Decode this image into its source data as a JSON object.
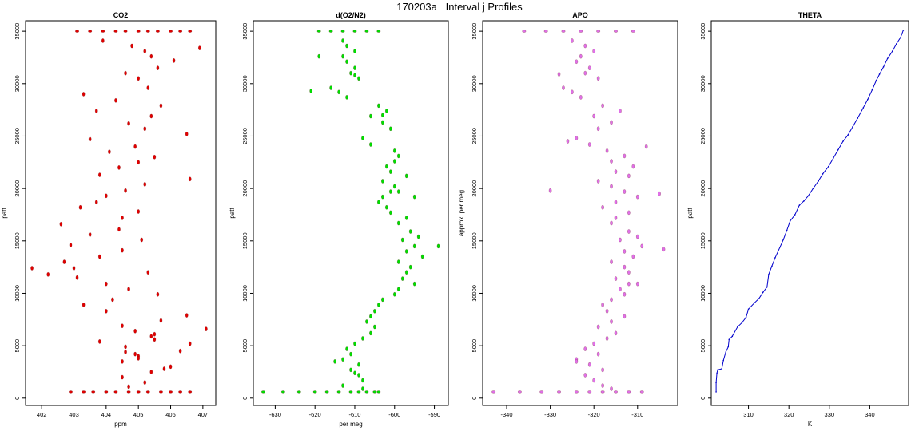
{
  "figure": {
    "title": "170203a   Interval j Profiles"
  },
  "chart_data": [
    {
      "type": "scatter",
      "title": "CO2",
      "xlabel": "ppm",
      "ylabel": "patt",
      "xlim": [
        401.5,
        407.4
      ],
      "ylim": [
        -700,
        36000
      ],
      "xticks": [
        402,
        403,
        404,
        405,
        406,
        407
      ],
      "yticks": [
        0,
        5000,
        10000,
        15000,
        20000,
        25000,
        30000,
        35000
      ],
      "color": "#e00000",
      "grid": false,
      "series": [
        {
          "x": [
            403.9,
            404.8,
            405.2,
            405.4,
            406.1,
            405.6,
            404.6,
            405.0,
            405.3,
            403.3,
            404.3,
            405.7,
            403.7,
            405.4,
            404.7,
            405.2,
            406.5,
            403.5,
            404.9,
            404.1,
            405.5,
            405.0,
            404.4,
            403.8,
            406.6,
            405.2,
            404.6,
            404.0,
            403.7,
            403.2,
            405.0,
            404.5,
            402.6,
            404.4,
            403.5,
            405.1,
            402.9,
            404.5,
            403.8,
            402.7,
            403.0,
            405.3,
            403.1,
            404.0,
            404.7,
            405.6,
            404.2,
            403.3,
            404.0,
            406.5,
            405.7,
            404.5,
            404.9,
            405.4,
            403.8,
            404.6,
            406.3,
            405.0,
            404.5,
            406.0,
            405.4,
            404.5,
            405.2,
            404.7,
            405.8,
            405.0,
            404.6,
            405.5,
            405.5,
            404.9,
            406.6,
            407.1,
            402.2,
            401.7,
            406.9
          ],
          "y": [
            34100,
            33600,
            33100,
            32600,
            32200,
            31500,
            31000,
            30500,
            29600,
            29000,
            28400,
            27900,
            27400,
            26900,
            26200,
            25700,
            25200,
            24700,
            24000,
            23500,
            23000,
            22500,
            22000,
            21300,
            20900,
            20400,
            19800,
            19300,
            18700,
            18200,
            17800,
            17200,
            16600,
            16100,
            15600,
            15100,
            14600,
            14100,
            13500,
            13000,
            12400,
            12000,
            11500,
            10900,
            10400,
            9900,
            9400,
            8900,
            8300,
            7900,
            7400,
            6900,
            6400,
            5900,
            5400,
            4900,
            4500,
            4000,
            3500,
            3000,
            2500,
            2000,
            1500,
            1100,
            2800,
            3800,
            4400,
            6100,
            5600,
            4200,
            5200,
            6600,
            11800,
            12400,
            33400
          ],
          "baseline_x": [
            402.9,
            403.3,
            403.6,
            404.0,
            404.3,
            404.7,
            405.0,
            405.3,
            405.7,
            406.0,
            406.3,
            406.6
          ],
          "top_x": [
            403.1,
            403.5,
            403.9,
            404.3,
            404.6,
            405.0,
            405.3,
            405.6,
            406.0,
            406.3,
            406.6
          ]
        }
      ]
    },
    {
      "type": "scatter",
      "title": "d(O2/N2)",
      "xlabel": "per meg",
      "ylabel": "patt",
      "xlim": [
        -635.5,
        -586.5
      ],
      "ylim": [
        -700,
        36000
      ],
      "xticks": [
        -630,
        -620,
        -610,
        -600,
        -590
      ],
      "yticks": [
        0,
        5000,
        10000,
        15000,
        20000,
        25000,
        30000,
        35000
      ],
      "color": "#00dd00",
      "grid": false,
      "series": [
        {
          "x": [
            -613,
            -612,
            -610,
            -613,
            -612,
            -610,
            -611,
            -609,
            -616,
            -614,
            -612,
            -604,
            -602,
            -606,
            -603,
            -601,
            -608,
            -606,
            -600,
            -599,
            -600,
            -602,
            -601,
            -597,
            -603,
            -600,
            -599,
            -603,
            -604,
            -602,
            -601,
            -597,
            -599,
            -596,
            -594,
            -598,
            -595,
            -597,
            -593,
            -599,
            -596,
            -597,
            -598,
            -595,
            -599,
            -600,
            -603,
            -604,
            -605,
            -606,
            -607,
            -605,
            -606,
            -608,
            -610,
            -612,
            -611,
            -613,
            -609,
            -611,
            -609,
            -608,
            -613,
            -610,
            -608,
            -615,
            -619,
            -621,
            -595,
            -601,
            -603,
            -610,
            -589
          ],
          "y": [
            34100,
            33600,
            33100,
            32600,
            32100,
            31500,
            31000,
            30500,
            29600,
            29200,
            28700,
            27900,
            27400,
            26900,
            26300,
            25700,
            24800,
            24200,
            23600,
            23100,
            22600,
            22100,
            21600,
            21200,
            20700,
            20200,
            19700,
            19200,
            18700,
            18200,
            17700,
            17200,
            16700,
            15900,
            15400,
            15100,
            14500,
            14000,
            13500,
            13000,
            12500,
            12000,
            11400,
            10900,
            10400,
            9900,
            9400,
            8900,
            8300,
            7800,
            7300,
            6800,
            6200,
            5700,
            5200,
            4700,
            4200,
            3700,
            3200,
            2700,
            2200,
            1700,
            1200,
            2400,
            900,
            3500,
            32600,
            29300,
            19200,
            19700,
            27000,
            30800,
            14500
          ],
          "baseline_x": [
            -633,
            -628,
            -624,
            -620,
            -617,
            -614,
            -611,
            -609,
            -607,
            -605,
            -604
          ],
          "top_x": [
            -619,
            -616,
            -613,
            -610,
            -607,
            -604
          ]
        }
      ]
    },
    {
      "type": "scatter",
      "title": "APO",
      "xlabel": "",
      "ylabel": "approx. per meg",
      "xlim": [
        -345.5,
        -300.8
      ],
      "ylim": [
        -700,
        36000
      ],
      "xticks": [
        -340,
        -330,
        -320,
        -310
      ],
      "yticks": [
        0,
        5000,
        10000,
        15000,
        20000,
        25000,
        30000,
        35000
      ],
      "color": "#e070e8",
      "grid": false,
      "series": [
        {
          "x": [
            -325,
            -322,
            -320,
            -323,
            -324,
            -321,
            -322,
            -319,
            -327,
            -325,
            -323,
            -318,
            -314,
            -320,
            -316,
            -319,
            -324,
            -321,
            -317,
            -313,
            -316,
            -311,
            -315,
            -312,
            -319,
            -316,
            -313,
            -310,
            -315,
            -318,
            -312,
            -315,
            -316,
            -312,
            -310,
            -314,
            -309,
            -313,
            -311,
            -316,
            -313,
            -312,
            -315,
            -310,
            -314,
            -313,
            -316,
            -318,
            -317,
            -313,
            -316,
            -319,
            -315,
            -317,
            -320,
            -322,
            -319,
            -324,
            -321,
            -318,
            -322,
            -320,
            -318,
            -316,
            -324,
            -312,
            -305,
            -304,
            -328,
            -326,
            -330,
            -308
          ],
          "y": [
            34100,
            33600,
            33100,
            32600,
            32100,
            31500,
            31000,
            30500,
            29600,
            29200,
            28700,
            27900,
            27400,
            26900,
            26300,
            25700,
            24800,
            24200,
            23600,
            23100,
            22600,
            22100,
            21600,
            21200,
            20700,
            20200,
            19700,
            19200,
            18700,
            18200,
            17700,
            17200,
            16700,
            15900,
            15400,
            15100,
            14500,
            14000,
            13500,
            13000,
            12500,
            12000,
            11400,
            10900,
            10400,
            9900,
            9400,
            8900,
            8300,
            7800,
            7300,
            6800,
            6200,
            5700,
            5200,
            4700,
            4200,
            3700,
            3200,
            2700,
            2200,
            1700,
            1200,
            900,
            3500,
            10900,
            19500,
            14200,
            30900,
            24500,
            19800,
            24000
          ],
          "baseline_x": [
            -343,
            -337,
            -332,
            -328,
            -324,
            -321,
            -318,
            -315,
            -312,
            -309
          ],
          "top_x": [
            -336,
            -331,
            -327,
            -323,
            -319,
            -315,
            -311
          ]
        }
      ]
    },
    {
      "type": "line",
      "title": "THETA",
      "xlabel": "K",
      "ylabel": "patt",
      "xlim": [
        300.8,
        349.6
      ],
      "ylim": [
        -700,
        36000
      ],
      "xticks": [
        310,
        320,
        330,
        340
      ],
      "yticks": [
        0,
        5000,
        10000,
        15000,
        20000,
        25000,
        30000,
        35000
      ],
      "color": "#0000cc",
      "grid": false,
      "series": [
        {
          "x": [
            302.0,
            302.0,
            302.2,
            302.4,
            303.4,
            303.8,
            304.4,
            305.0,
            305.2,
            306.0,
            307.3,
            308.4,
            309.4,
            310.0,
            311.5,
            312.6,
            313.6,
            314.6,
            315.0,
            315.8,
            316.6,
            317.8,
            318.6,
            319.5,
            320.3,
            321.5,
            322.6,
            323.7,
            324.8,
            326.0,
            327.3,
            328.4,
            329.8,
            331.0,
            332.2,
            333.4,
            334.6,
            335.8,
            337.0,
            338.4,
            339.5,
            340.6,
            341.6,
            342.4,
            343.4,
            344.4,
            345.6,
            346.6,
            347.6,
            348.3
          ],
          "y": [
            600,
            1500,
            2400,
            2700,
            2800,
            3600,
            4400,
            4900,
            5600,
            5900,
            6800,
            7200,
            7700,
            8500,
            9100,
            9500,
            10100,
            10600,
            11800,
            12600,
            13400,
            14400,
            15100,
            16000,
            16900,
            17500,
            18400,
            18800,
            19300,
            20000,
            20700,
            21400,
            22100,
            22900,
            23700,
            24500,
            25100,
            25900,
            26700,
            27700,
            28500,
            29400,
            30300,
            30900,
            31600,
            32400,
            33100,
            33800,
            34400,
            35100
          ]
        }
      ]
    }
  ]
}
